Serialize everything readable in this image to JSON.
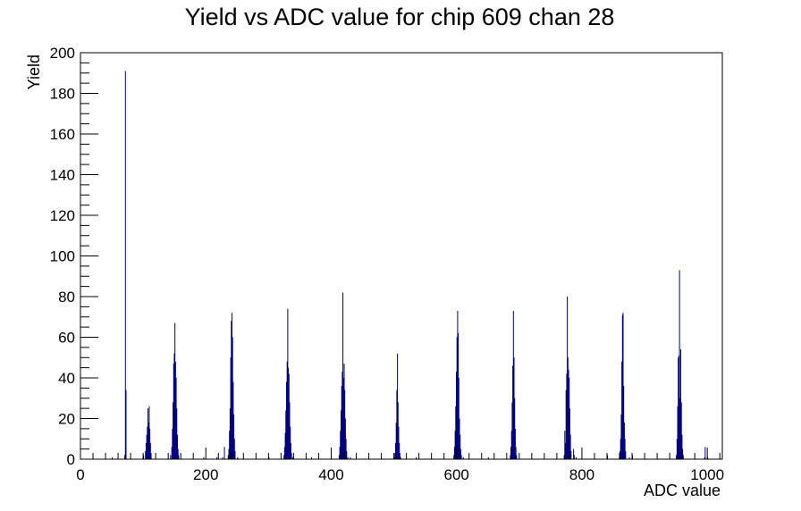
{
  "chart_data": {
    "type": "bar",
    "title": "Yield vs ADC value for chip 609 chan 28",
    "xlabel": "ADC value",
    "ylabel": "Yield",
    "xlim": [
      0,
      1024
    ],
    "ylim": [
      0,
      200
    ],
    "x_ticks": [
      0,
      200,
      400,
      600,
      800,
      1000
    ],
    "y_ticks": [
      0,
      20,
      40,
      60,
      80,
      100,
      120,
      140,
      160,
      180,
      200
    ],
    "grid": false,
    "legend": false,
    "series": [
      {
        "color": "#000080",
        "bins": [
          [
            50,
            1
          ],
          [
            70,
            2
          ],
          [
            71,
            191
          ],
          [
            72,
            34
          ],
          [
            99,
            1
          ],
          [
            100,
            2
          ],
          [
            103,
            4
          ],
          [
            104,
            8
          ],
          [
            105,
            12
          ],
          [
            106,
            16
          ],
          [
            107,
            25
          ],
          [
            108,
            18
          ],
          [
            109,
            26
          ],
          [
            110,
            15
          ],
          [
            111,
            8
          ],
          [
            112,
            3
          ],
          [
            143,
            2
          ],
          [
            145,
            6
          ],
          [
            146,
            15
          ],
          [
            147,
            28
          ],
          [
            148,
            47
          ],
          [
            149,
            52
          ],
          [
            150,
            67
          ],
          [
            151,
            48
          ],
          [
            152,
            40
          ],
          [
            153,
            25
          ],
          [
            154,
            12
          ],
          [
            155,
            5
          ],
          [
            156,
            2
          ],
          [
            196,
            1
          ],
          [
            217,
            1
          ],
          [
            226,
            1
          ],
          [
            229,
            6
          ],
          [
            235,
            2
          ],
          [
            236,
            5
          ],
          [
            237,
            14
          ],
          [
            238,
            25
          ],
          [
            239,
            50
          ],
          [
            240,
            68
          ],
          [
            241,
            72
          ],
          [
            242,
            60
          ],
          [
            243,
            38
          ],
          [
            244,
            22
          ],
          [
            245,
            10
          ],
          [
            246,
            4
          ],
          [
            250,
            1
          ],
          [
            300,
            1
          ],
          [
            324,
            2
          ],
          [
            325,
            6
          ],
          [
            326,
            13
          ],
          [
            327,
            24
          ],
          [
            328,
            38
          ],
          [
            329,
            48
          ],
          [
            330,
            74
          ],
          [
            331,
            45
          ],
          [
            332,
            42
          ],
          [
            333,
            28
          ],
          [
            334,
            16
          ],
          [
            335,
            8
          ],
          [
            336,
            3
          ],
          [
            338,
            1
          ],
          [
            368,
            1
          ],
          [
            412,
            2
          ],
          [
            413,
            6
          ],
          [
            414,
            14
          ],
          [
            415,
            24
          ],
          [
            416,
            36
          ],
          [
            417,
            43
          ],
          [
            418,
            82
          ],
          [
            419,
            40
          ],
          [
            420,
            47
          ],
          [
            421,
            34
          ],
          [
            422,
            20
          ],
          [
            423,
            10
          ],
          [
            424,
            4
          ],
          [
            426,
            1
          ],
          [
            430,
            1
          ],
          [
            500,
            1
          ],
          [
            501,
            3
          ],
          [
            502,
            8
          ],
          [
            503,
            18
          ],
          [
            504,
            34
          ],
          [
            505,
            52
          ],
          [
            506,
            28
          ],
          [
            507,
            16
          ],
          [
            508,
            8
          ],
          [
            509,
            3
          ],
          [
            510,
            1
          ],
          [
            535,
            1
          ],
          [
            595,
            2
          ],
          [
            596,
            6
          ],
          [
            597,
            14
          ],
          [
            598,
            26
          ],
          [
            599,
            43
          ],
          [
            600,
            60
          ],
          [
            601,
            73
          ],
          [
            602,
            62
          ],
          [
            603,
            40
          ],
          [
            604,
            20
          ],
          [
            605,
            12
          ],
          [
            606,
            5
          ],
          [
            607,
            2
          ],
          [
            610,
            1
          ],
          [
            650,
            1
          ],
          [
            685,
            2
          ],
          [
            686,
            6
          ],
          [
            687,
            14
          ],
          [
            688,
            28
          ],
          [
            689,
            46
          ],
          [
            690,
            73
          ],
          [
            691,
            50
          ],
          [
            692,
            30
          ],
          [
            693,
            15
          ],
          [
            694,
            6
          ],
          [
            695,
            2
          ],
          [
            771,
            2
          ],
          [
            772,
            14
          ],
          [
            773,
            8
          ],
          [
            774,
            34
          ],
          [
            775,
            42
          ],
          [
            776,
            80
          ],
          [
            777,
            50
          ],
          [
            778,
            44
          ],
          [
            779,
            40
          ],
          [
            780,
            25
          ],
          [
            781,
            12
          ],
          [
            782,
            4
          ],
          [
            786,
            5
          ],
          [
            787,
            2
          ],
          [
            790,
            1
          ],
          [
            840,
            2
          ],
          [
            859,
            1
          ],
          [
            860,
            4
          ],
          [
            861,
            10
          ],
          [
            862,
            22
          ],
          [
            863,
            48
          ],
          [
            864,
            71
          ],
          [
            865,
            72
          ],
          [
            866,
            36
          ],
          [
            867,
            18
          ],
          [
            868,
            10
          ],
          [
            869,
            4
          ],
          [
            875,
            1
          ],
          [
            880,
            2
          ],
          [
            950,
            2
          ],
          [
            951,
            10
          ],
          [
            952,
            26
          ],
          [
            953,
            50
          ],
          [
            954,
            51
          ],
          [
            955,
            93
          ],
          [
            956,
            30
          ],
          [
            957,
            54
          ],
          [
            958,
            28
          ],
          [
            959,
            12
          ],
          [
            960,
            5
          ],
          [
            961,
            2
          ],
          [
            995,
            1
          ],
          [
            996,
            6
          ],
          [
            1000,
            1
          ]
        ]
      }
    ]
  }
}
